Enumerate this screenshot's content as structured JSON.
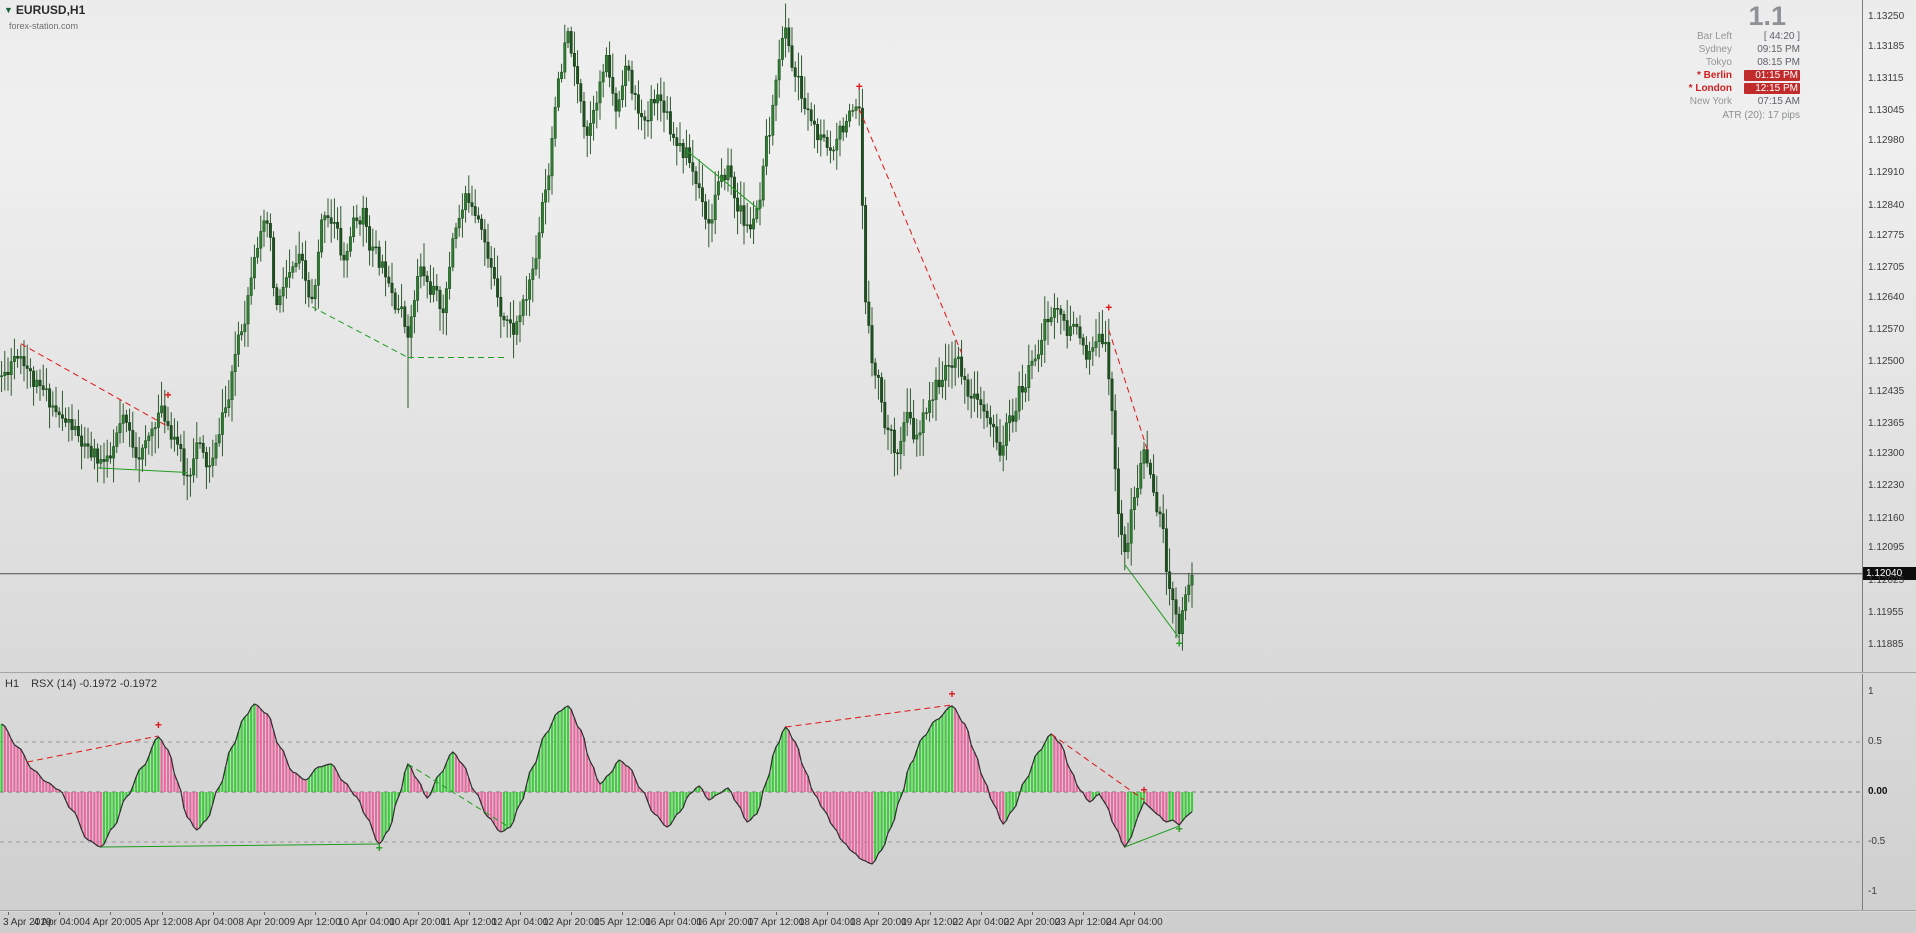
{
  "app": {
    "symbol": "EURUSD,H1",
    "watermark": "forex-station.com"
  },
  "info_panel": {
    "big_value": "1.1",
    "rows": [
      {
        "label": "Bar Left",
        "value": "[ 44:20 ]",
        "highlight": false
      },
      {
        "label": "Sydney",
        "value": "09:15 PM",
        "highlight": false
      },
      {
        "label": "Tokyo",
        "value": "08:15 PM",
        "highlight": false
      },
      {
        "label": "Berlin",
        "value": "01:15 PM",
        "highlight": true
      },
      {
        "label": "London",
        "value": "12:15 PM",
        "highlight": true
      },
      {
        "label": "New York",
        "value": "07:15 AM",
        "highlight": false
      }
    ],
    "atr": "ATR (20): 17 pips"
  },
  "indicator_header": {
    "timeframe": "H1",
    "title": "RSX (14) -0.1972 -0.1972"
  },
  "chart_data": {
    "type": "candlestick",
    "title": "EURUSD H1 candlestick chart with zigzag/divergence lines and RSX(14) histogram oscillator",
    "colors": {
      "bull": "#2f7d32",
      "bear": "#1e5220",
      "wick": "#1d4a1d",
      "line_red": "#e01414",
      "line_green": "#1f9d1f",
      "rsx_up": "#3dcc3d",
      "rsx_down": "#e8689f",
      "envelope": "#2d2d2d",
      "price_line": "#4d4d4d",
      "badge_bg": "#0d0d0d"
    },
    "price_pane": {
      "ylim": [
        1.11885,
        1.1325
      ],
      "ticks": [
        "1.13250",
        "1.13185",
        "1.13115",
        "1.13045",
        "1.12980",
        "1.12910",
        "1.12840",
        "1.12775",
        "1.12705",
        "1.12640",
        "1.12570",
        "1.12500",
        "1.12435",
        "1.12365",
        "1.12300",
        "1.12230",
        "1.12160",
        "1.12095",
        "1.12025",
        "1.11955",
        "1.11885"
      ],
      "current_price": 1.1204,
      "current_price_label": "1.12040",
      "bars_total": 373,
      "waypoints": [
        [
          0,
          1.1247
        ],
        [
          5,
          1.1252
        ],
        [
          12,
          1.1244
        ],
        [
          20,
          1.1237
        ],
        [
          28,
          1.123
        ],
        [
          33,
          1.1228
        ],
        [
          38,
          1.1237
        ],
        [
          43,
          1.123
        ],
        [
          50,
          1.1239
        ],
        [
          54,
          1.1234
        ],
        [
          58,
          1.1225
        ],
        [
          61,
          1.1232
        ],
        [
          65,
          1.1227
        ],
        [
          70,
          1.124
        ],
        [
          75,
          1.1258
        ],
        [
          80,
          1.1276
        ],
        [
          83,
          1.128
        ],
        [
          86,
          1.1262
        ],
        [
          89,
          1.1268
        ],
        [
          93,
          1.1272
        ],
        [
          97,
          1.1263
        ],
        [
          101,
          1.1283
        ],
        [
          104,
          1.128
        ],
        [
          107,
          1.1272
        ],
        [
          110,
          1.128
        ],
        [
          113,
          1.1282
        ],
        [
          116,
          1.1274
        ],
        [
          120,
          1.127
        ],
        [
          124,
          1.1262
        ],
        [
          127,
          1.1257
        ],
        [
          131,
          1.127
        ],
        [
          134,
          1.1266
        ],
        [
          138,
          1.1262
        ],
        [
          142,
          1.128
        ],
        [
          146,
          1.1286
        ],
        [
          149,
          1.1282
        ],
        [
          153,
          1.127
        ],
        [
          157,
          1.126
        ],
        [
          160,
          1.1257
        ],
        [
          163,
          1.1262
        ],
        [
          166,
          1.127
        ],
        [
          170,
          1.1288
        ],
        [
          174,
          1.131
        ],
        [
          177,
          1.1321
        ],
        [
          180,
          1.131
        ],
        [
          183,
          1.13
        ],
        [
          186,
          1.1308
        ],
        [
          189,
          1.1315
        ],
        [
          192,
          1.1305
        ],
        [
          195,
          1.1314
        ],
        [
          198,
          1.1307
        ],
        [
          201,
          1.1301
        ],
        [
          204,
          1.1308
        ],
        [
          207,
          1.1306
        ],
        [
          210,
          1.1299
        ],
        [
          214,
          1.1295
        ],
        [
          218,
          1.1288
        ],
        [
          221,
          1.128
        ],
        [
          224,
          1.1288
        ],
        [
          227,
          1.1292
        ],
        [
          230,
          1.1284
        ],
        [
          233,
          1.1279
        ],
        [
          236,
          1.1282
        ],
        [
          240,
          1.13
        ],
        [
          243,
          1.1317
        ],
        [
          245,
          1.1322
        ],
        [
          248,
          1.1312
        ],
        [
          252,
          1.1304
        ],
        [
          256,
          1.1298
        ],
        [
          259,
          1.1296
        ],
        [
          262,
          1.1301
        ],
        [
          265,
          1.1303
        ],
        [
          268,
          1.1304
        ],
        [
          270,
          1.1262
        ],
        [
          273,
          1.1248
        ],
        [
          277,
          1.1235
        ],
        [
          280,
          1.1231
        ],
        [
          283,
          1.1238
        ],
        [
          286,
          1.1233
        ],
        [
          290,
          1.1242
        ],
        [
          294,
          1.1247
        ],
        [
          298,
          1.1251
        ],
        [
          302,
          1.1244
        ],
        [
          306,
          1.124
        ],
        [
          309,
          1.1236
        ],
        [
          312,
          1.1231
        ],
        [
          315,
          1.1237
        ],
        [
          319,
          1.1244
        ],
        [
          323,
          1.1252
        ],
        [
          327,
          1.1259
        ],
        [
          330,
          1.1262
        ],
        [
          333,
          1.1256
        ],
        [
          336,
          1.1259
        ],
        [
          339,
          1.125
        ],
        [
          342,
          1.1254
        ],
        [
          345,
          1.1256
        ],
        [
          347,
          1.1238
        ],
        [
          349,
          1.1218
        ],
        [
          351,
          1.1208
        ],
        [
          354,
          1.122
        ],
        [
          357,
          1.1231
        ],
        [
          360,
          1.1222
        ],
        [
          362,
          1.1216
        ],
        [
          365,
          1.1202
        ],
        [
          368,
          1.1192
        ],
        [
          370,
          1.12
        ],
        [
          372,
          1.1204
        ]
      ],
      "spikes": [
        [
          58,
          1.122
        ],
        [
          127,
          1.124
        ]
      ],
      "lines": [
        {
          "color": "red",
          "dash": true,
          "from": [
            6,
            1.1254
          ],
          "to": [
            52,
            1.1236
          ]
        },
        {
          "color": "green",
          "dash": false,
          "from": [
            30,
            1.1227
          ],
          "to": [
            58,
            1.1226
          ]
        },
        {
          "color": "green",
          "dash": true,
          "from": [
            97,
            1.1262
          ],
          "to": [
            127,
            1.1251
          ]
        },
        {
          "color": "green",
          "dash": true,
          "from": [
            127,
            1.1251
          ],
          "to": [
            158,
            1.1251
          ]
        },
        {
          "color": "green",
          "dash": false,
          "from": [
            214,
            1.1296
          ],
          "to": [
            237,
            1.1283
          ]
        },
        {
          "color": "red",
          "dash": true,
          "from": [
            268,
            1.1305
          ],
          "to": [
            300,
            1.1252
          ]
        },
        {
          "color": "red",
          "dash": true,
          "from": [
            346,
            1.1257
          ],
          "to": [
            358,
            1.1231
          ]
        },
        {
          "color": "green",
          "dash": false,
          "from": [
            351,
            1.1206
          ],
          "to": [
            368,
            1.119
          ]
        }
      ],
      "markers": [
        {
          "bar": 52,
          "price": 1.1242,
          "color": "red"
        },
        {
          "bar": 268,
          "price": 1.1309,
          "color": "red"
        },
        {
          "bar": 346,
          "price": 1.1261,
          "color": "red"
        },
        {
          "bar": 368,
          "price": 1.1188,
          "color": "green"
        }
      ]
    },
    "rsx_pane": {
      "name": "RSX (14)",
      "last_values": [
        -0.1972,
        -0.1972
      ],
      "ylim": [
        -1,
        1
      ],
      "ticks": [
        "1",
        "0.5",
        "0.00",
        "-0.5",
        "-1"
      ],
      "levels": [
        0.5,
        0,
        -0.5
      ],
      "waypoints": [
        [
          0,
          0.68
        ],
        [
          5,
          0.45
        ],
        [
          10,
          0.22
        ],
        [
          14,
          0.1
        ],
        [
          18,
          0.02
        ],
        [
          22,
          -0.18
        ],
        [
          27,
          -0.48
        ],
        [
          31,
          -0.55
        ],
        [
          35,
          -0.35
        ],
        [
          39,
          -0.05
        ],
        [
          44,
          0.25
        ],
        [
          49,
          0.55
        ],
        [
          52,
          0.42
        ],
        [
          55,
          0.1
        ],
        [
          58,
          -0.25
        ],
        [
          61,
          -0.38
        ],
        [
          64,
          -0.28
        ],
        [
          68,
          0.05
        ],
        [
          72,
          0.45
        ],
        [
          76,
          0.75
        ],
        [
          79,
          0.88
        ],
        [
          83,
          0.78
        ],
        [
          87,
          0.45
        ],
        [
          91,
          0.2
        ],
        [
          95,
          0.12
        ],
        [
          99,
          0.25
        ],
        [
          103,
          0.28
        ],
        [
          107,
          0.1
        ],
        [
          111,
          -0.05
        ],
        [
          114,
          -0.25
        ],
        [
          118,
          -0.52
        ],
        [
          121,
          -0.38
        ],
        [
          124,
          -0.05
        ],
        [
          127,
          0.28
        ],
        [
          130,
          0.12
        ],
        [
          133,
          -0.06
        ],
        [
          137,
          0.18
        ],
        [
          141,
          0.4
        ],
        [
          144,
          0.28
        ],
        [
          148,
          0.0
        ],
        [
          152,
          -0.25
        ],
        [
          156,
          -0.4
        ],
        [
          159,
          -0.35
        ],
        [
          162,
          -0.12
        ],
        [
          166,
          0.25
        ],
        [
          170,
          0.58
        ],
        [
          174,
          0.8
        ],
        [
          177,
          0.86
        ],
        [
          181,
          0.62
        ],
        [
          184,
          0.3
        ],
        [
          187,
          0.08
        ],
        [
          190,
          0.18
        ],
        [
          193,
          0.32
        ],
        [
          196,
          0.25
        ],
        [
          200,
          0.02
        ],
        [
          204,
          -0.22
        ],
        [
          208,
          -0.35
        ],
        [
          212,
          -0.2
        ],
        [
          215,
          -0.02
        ],
        [
          218,
          0.06
        ],
        [
          221,
          -0.08
        ],
        [
          224,
          -0.02
        ],
        [
          227,
          0.04
        ],
        [
          230,
          -0.12
        ],
        [
          233,
          -0.3
        ],
        [
          236,
          -0.22
        ],
        [
          239,
          0.1
        ],
        [
          242,
          0.45
        ],
        [
          245,
          0.65
        ],
        [
          248,
          0.5
        ],
        [
          251,
          0.22
        ],
        [
          254,
          -0.02
        ],
        [
          257,
          -0.18
        ],
        [
          260,
          -0.35
        ],
        [
          263,
          -0.5
        ],
        [
          266,
          -0.6
        ],
        [
          269,
          -0.68
        ],
        [
          272,
          -0.72
        ],
        [
          275,
          -0.58
        ],
        [
          278,
          -0.35
        ],
        [
          281,
          -0.05
        ],
        [
          284,
          0.28
        ],
        [
          288,
          0.55
        ],
        [
          292,
          0.72
        ],
        [
          297,
          0.86
        ],
        [
          301,
          0.68
        ],
        [
          304,
          0.4
        ],
        [
          307,
          0.12
        ],
        [
          310,
          -0.12
        ],
        [
          313,
          -0.32
        ],
        [
          316,
          -0.18
        ],
        [
          320,
          0.12
        ],
        [
          324,
          0.4
        ],
        [
          328,
          0.58
        ],
        [
          331,
          0.48
        ],
        [
          334,
          0.22
        ],
        [
          337,
          0.02
        ],
        [
          340,
          -0.1
        ],
        [
          343,
          -0.02
        ],
        [
          345,
          -0.12
        ],
        [
          348,
          -0.35
        ],
        [
          351,
          -0.55
        ],
        [
          353,
          -0.45
        ],
        [
          355,
          -0.25
        ],
        [
          357,
          -0.1
        ],
        [
          359,
          -0.16
        ],
        [
          361,
          -0.22
        ],
        [
          364,
          -0.3
        ],
        [
          366,
          -0.28
        ],
        [
          368,
          -0.33
        ],
        [
          370,
          -0.25
        ],
        [
          372,
          -0.1972
        ]
      ],
      "lines": [
        {
          "color": "red",
          "dash": true,
          "from": [
            8,
            0.3
          ],
          "to": [
            49,
            0.56
          ]
        },
        {
          "color": "green",
          "dash": false,
          "from": [
            31,
            -0.55
          ],
          "to": [
            118,
            -0.52
          ]
        },
        {
          "color": "green",
          "dash": true,
          "from": [
            127,
            0.28
          ],
          "to": [
            159,
            -0.36
          ]
        },
        {
          "color": "red",
          "dash": true,
          "from": [
            245,
            0.65
          ],
          "to": [
            297,
            0.87
          ]
        },
        {
          "color": "red",
          "dash": true,
          "from": [
            328,
            0.58
          ],
          "to": [
            357,
            -0.08
          ]
        },
        {
          "color": "green",
          "dash": false,
          "from": [
            351,
            -0.55
          ],
          "to": [
            368,
            -0.34
          ]
        }
      ],
      "markers": [
        {
          "bar": 49,
          "value": 0.63,
          "color": "red"
        },
        {
          "bar": 297,
          "value": 0.94,
          "color": "red"
        },
        {
          "bar": 357,
          "value": -0.02,
          "color": "red"
        },
        {
          "bar": 118,
          "value": -0.6,
          "color": "green"
        },
        {
          "bar": 368,
          "value": -0.41,
          "color": "green"
        }
      ]
    },
    "time_axis": {
      "first_bar": 2,
      "step_bars": 16,
      "labels": [
        "3 Apr 2019",
        "4 Apr 04:00",
        "4 Apr 20:00",
        "5 Apr 12:00",
        "8 Apr 04:00",
        "8 Apr 20:00",
        "9 Apr 12:00",
        "10 Apr 04:00",
        "10 Apr 20:00",
        "11 Apr 12:00",
        "12 Apr 04:00",
        "12 Apr 20:00",
        "15 Apr 12:00",
        "16 Apr 04:00",
        "16 Apr 20:00",
        "17 Apr 12:00",
        "18 Apr 04:00",
        "18 Apr 20:00",
        "19 Apr 12:00",
        "22 Apr 04:00",
        "22 Apr 20:00",
        "23 Apr 12:00",
        "24 Apr 04:00"
      ]
    }
  }
}
